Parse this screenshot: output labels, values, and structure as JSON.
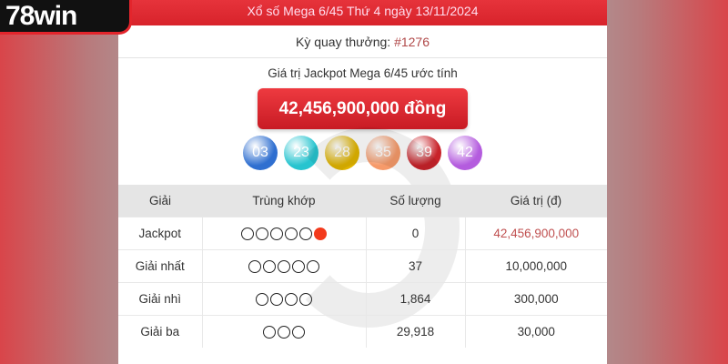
{
  "logo": "78win",
  "header": {
    "title": "Xổ số Mega 6/45 Thứ 4 ngày 13/11/2024"
  },
  "draw": {
    "label": "Kỳ quay thưởng: ",
    "number": "#1276"
  },
  "jackpot": {
    "title": "Giá trị Jackpot Mega 6/45 ước tính",
    "value": "42,456,900,000 đồng"
  },
  "balls": [
    {
      "n": "03",
      "color": "#2f6fd0"
    },
    {
      "n": "23",
      "color": "#27c4cf"
    },
    {
      "n": "28",
      "color": "#e0b400"
    },
    {
      "n": "35",
      "color": "#f69a6a"
    },
    {
      "n": "39",
      "color": "#c8232a"
    },
    {
      "n": "42",
      "color": "#b45cde"
    }
  ],
  "table": {
    "headers": [
      "Giải",
      "Trùng khớp",
      "Số lượng",
      "Giá trị (đ)"
    ],
    "rows": [
      {
        "prize": "Jackpot",
        "match": 5,
        "special": true,
        "count": "0",
        "value": "42,456,900,000"
      },
      {
        "prize": "Giải nhất",
        "match": 5,
        "special": false,
        "count": "37",
        "value": "10,000,000"
      },
      {
        "prize": "Giải nhì",
        "match": 4,
        "special": false,
        "count": "1,864",
        "value": "300,000"
      },
      {
        "prize": "Giải ba",
        "match": 3,
        "special": false,
        "count": "29,918",
        "value": "30,000"
      }
    ]
  }
}
